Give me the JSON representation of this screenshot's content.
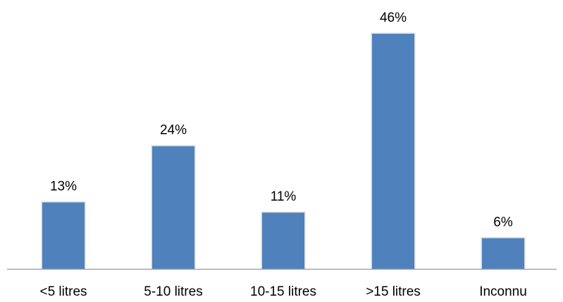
{
  "chart_data": {
    "type": "bar",
    "categories": [
      "<5 litres",
      "5-10 litres",
      "10-15 litres",
      ">15 litres",
      "Inconnu"
    ],
    "values": [
      13,
      24,
      11,
      46,
      6
    ],
    "data_labels": [
      "13%",
      "24%",
      "11%",
      "46%",
      "6%"
    ],
    "ylim": [
      0,
      50
    ],
    "grid": false,
    "legend": "none",
    "colors": {
      "bar": "#4F81BD",
      "bar_edge": "#D9D9D9",
      "axis": "#A6A6A6",
      "text": "#000000"
    }
  }
}
